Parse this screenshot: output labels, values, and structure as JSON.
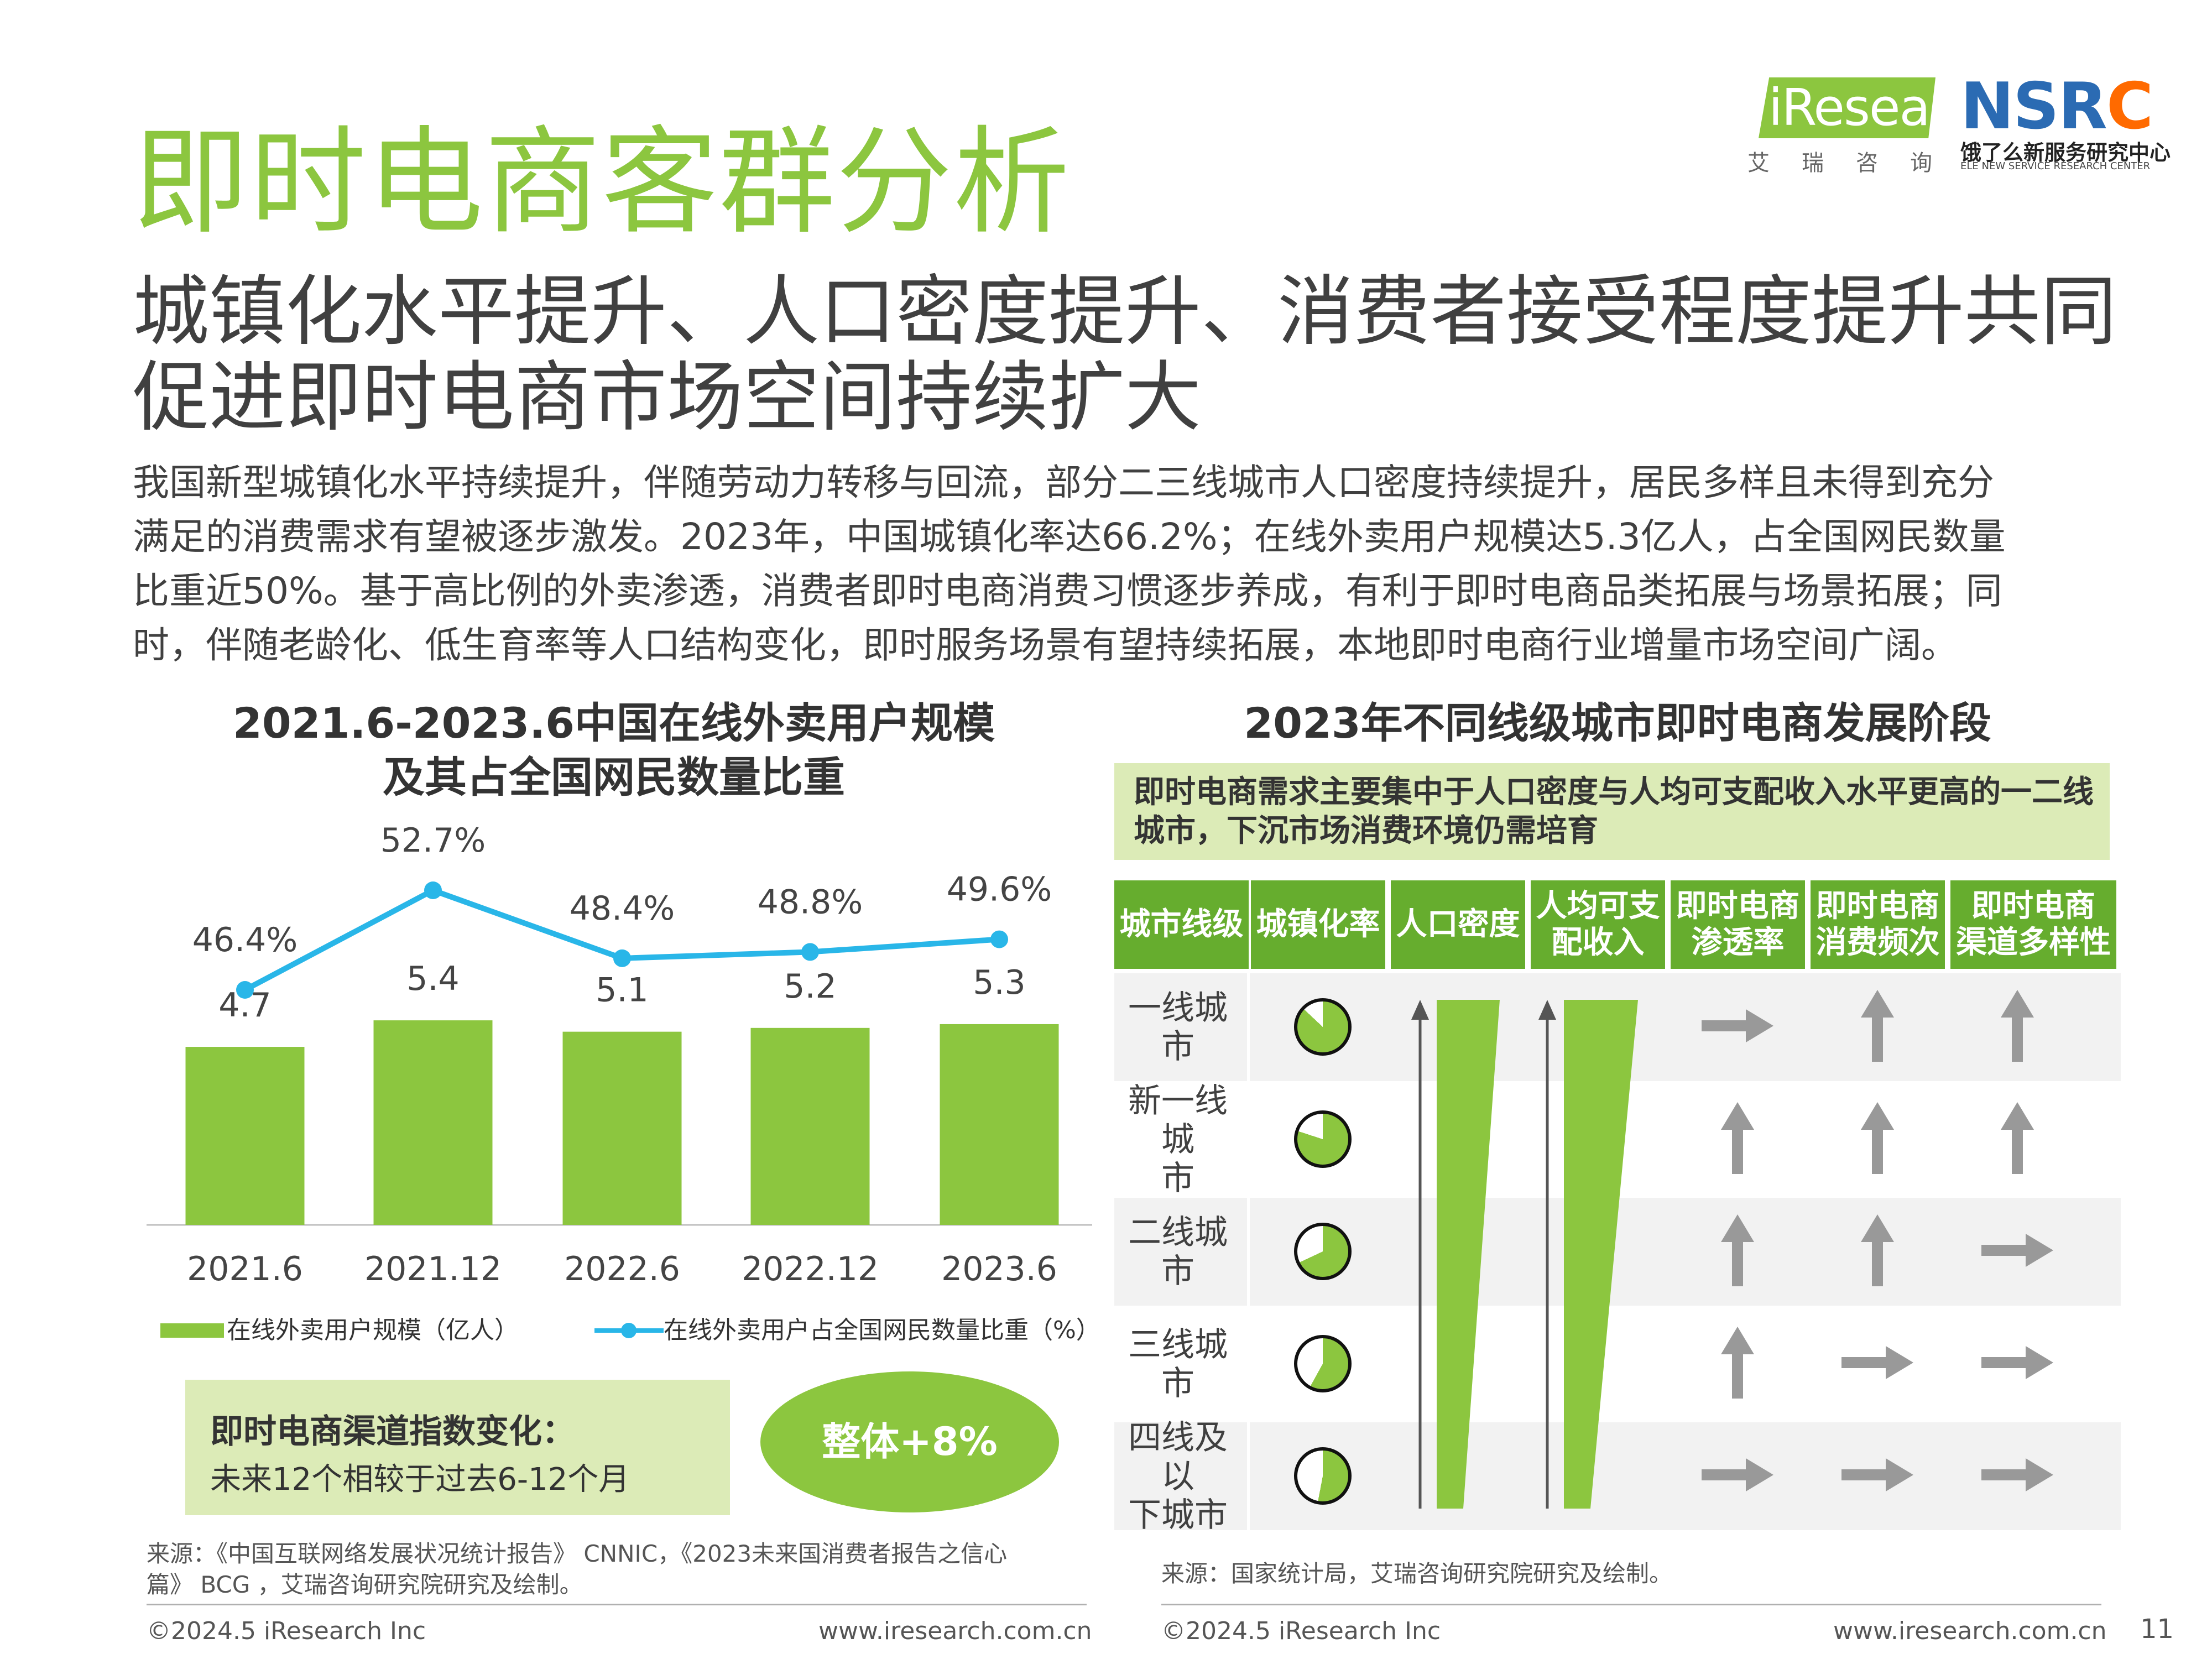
{
  "header": {
    "title": "即时电商客群分析",
    "headline": [
      "城镇化水平提升、人口密度提升、消费者接受程度提升共同",
      "促进即时电商市场空间持续扩大"
    ],
    "body": [
      "我国新型城镇化水平持续提升，伴随劳动力转移与回流，部分二三线城市人口密度持续提升，居民多样且未得到充分",
      "满足的消费需求有望被逐步激发。2023年，中国城镇化率达66.2%；在线外卖用户规模达5.3亿人，占全国网民数量",
      "比重近50%。基于高比例的外卖渗透，消费者即时电商消费习惯逐步养成，有利于即时电商品类拓展与场景拓展；同",
      "时，伴随老龄化、低生育率等人口结构变化，即时服务场景有望持续拓展，本地即时电商行业增量市场空间广阔。"
    ]
  },
  "logos": {
    "iresearch": "iResearch",
    "iresearch_cn": "艾瑞咨询",
    "nsrc_main": "NSR",
    "nsrc_c": "C",
    "nsrc_cn": "饿了么新服务研究中心",
    "nsrc_en": "ELE NEW SERVICE RESEARCH CENTER"
  },
  "chart_data": {
    "type": "bar",
    "title": [
      "2021.6-2023.6中国在线外卖用户规模",
      "及其占全国网民数量比重"
    ],
    "categories": [
      "2021.6",
      "2021.12",
      "2022.6",
      "2022.12",
      "2023.6"
    ],
    "series": [
      {
        "name": "在线外卖用户规模（亿人）",
        "type": "bar",
        "values": [
          4.7,
          5.4,
          5.1,
          5.2,
          5.3
        ],
        "labels": [
          "4.7",
          "5.4",
          "5.1",
          "5.2",
          "5.3"
        ],
        "color": "#8cc63f"
      },
      {
        "name": "在线外卖用户占全国网民数量比重（%）",
        "type": "line",
        "values": [
          46.4,
          52.7,
          48.4,
          48.8,
          49.6
        ],
        "labels": [
          "46.4%",
          "52.7%",
          "48.4%",
          "48.8%",
          "49.6%"
        ],
        "color": "#29b6e8"
      }
    ],
    "legend": "bottom",
    "grid": false
  },
  "channel": {
    "title": "即时电商渠道指数变化：",
    "subtitle": "未来12个相较于过去6-12个月",
    "overall": "整体+8%"
  },
  "source_left": [
    "来源：《中国互联网络发展状况统计报告》 CNNIC，《2023未来国消费者报告之信心",
    "篇》 BCG ，艾瑞咨询研究院研究及绘制。"
  ],
  "right_panel": {
    "title": "2023年不同线级城市即时电商发展阶段",
    "note": "即时电商需求主要集中于人口密度与人均可支配收入水平更高的一二线城市，下沉市场消费环境仍需培育",
    "headers": [
      "城市线级",
      "城镇化率",
      "人口密度",
      "人均可支配收入",
      "即时电商渗透率",
      "即时电商消费频次",
      "即时电商渠道多样性"
    ],
    "header_lines": [
      [
        "城市线级"
      ],
      [
        "城镇化率"
      ],
      [
        "人口密度"
      ],
      [
        "人均可支",
        "配收入"
      ],
      [
        "即时电商",
        "渗透率"
      ],
      [
        "即时电商",
        "消费频次"
      ],
      [
        "即时电商",
        "渠道多样性"
      ]
    ],
    "rows": [
      {
        "city": "一线城市",
        "city_lines": [
          "一线城市"
        ],
        "urbanization": 0.87,
        "trends": [
          "right",
          "up",
          "up"
        ]
      },
      {
        "city": "新一线城市",
        "city_lines": [
          "新一线城",
          "市"
        ],
        "urbanization": 0.8,
        "trends": [
          "up",
          "up",
          "up"
        ]
      },
      {
        "city": "二线城市",
        "city_lines": [
          "二线城市"
        ],
        "urbanization": 0.68,
        "trends": [
          "up",
          "up",
          "right"
        ]
      },
      {
        "city": "三线城市",
        "city_lines": [
          "三线城市"
        ],
        "urbanization": 0.58,
        "trends": [
          "up",
          "right",
          "right"
        ]
      },
      {
        "city": "四线及以下城市",
        "city_lines": [
          "四线及以",
          "下城市"
        ],
        "urbanization": 0.53,
        "trends": [
          "right",
          "right",
          "right"
        ]
      }
    ],
    "source": "来源：国家统计局，艾瑞咨询研究院研究及绘制。"
  },
  "footer": {
    "copyright_left": "©2024.5 iResearch Inc",
    "url_left": "www.iresearch.com.cn",
    "copyright_right": "©2024.5 iResearch Inc",
    "url_right": "www.iresearch.com.cn",
    "page_number": "11"
  },
  "colors": {
    "accent_green": "#8cc63f",
    "header_green": "#66ad2e",
    "line_blue": "#29b6e8",
    "note_bg": "#dcebb7",
    "arrow_gray": "#999999"
  }
}
